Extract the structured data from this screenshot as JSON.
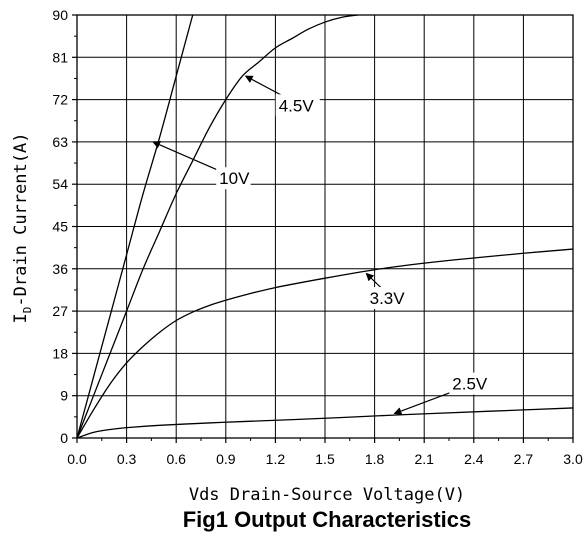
{
  "chart_data": {
    "type": "line",
    "title": "Fig1 Output Characteristics",
    "xlabel": "Vds Drain-Source Voltage(V)",
    "ylabel_main": "I",
    "ylabel_sub": "D",
    "ylabel_rest": "-Drain Current(A)",
    "xlim": [
      0,
      3.0
    ],
    "ylim": [
      0,
      90
    ],
    "grid": true,
    "x_ticks": [
      "0.0",
      "0.3",
      "0.6",
      "0.9",
      "1.2",
      "1.5",
      "1.8",
      "2.1",
      "2.4",
      "2.7",
      "3.0"
    ],
    "y_ticks": [
      "0",
      "9",
      "18",
      "27",
      "36",
      "45",
      "54",
      "63",
      "72",
      "81",
      "90"
    ],
    "series": [
      {
        "name": "10V",
        "x": [
          0,
          0.1,
          0.2,
          0.3,
          0.4,
          0.5,
          0.6,
          0.7
        ],
        "y": [
          0,
          13,
          26,
          39,
          52,
          64,
          77,
          90
        ]
      },
      {
        "name": "4.5V",
        "x": [
          0,
          0.1,
          0.2,
          0.3,
          0.4,
          0.5,
          0.6,
          0.7,
          0.8,
          0.9,
          1.0,
          1.1,
          1.2,
          1.3,
          1.4,
          1.5,
          1.6,
          1.7
        ],
        "y": [
          0,
          9,
          18,
          27,
          36,
          44,
          52,
          59,
          66,
          72,
          77,
          80,
          83,
          85,
          87,
          88.5,
          89.5,
          90
        ]
      },
      {
        "name": "3.3V",
        "x": [
          0,
          0.1,
          0.2,
          0.3,
          0.4,
          0.5,
          0.6,
          0.7,
          0.8,
          0.9,
          1.0,
          1.2,
          1.5,
          1.8,
          2.1,
          2.4,
          2.7,
          3.0
        ],
        "y": [
          0,
          6,
          11.5,
          16,
          19.5,
          22.5,
          25,
          26.8,
          28.2,
          29.3,
          30.3,
          32,
          34,
          35.8,
          37.2,
          38.3,
          39.3,
          40.2
        ]
      },
      {
        "name": "2.5V",
        "x": [
          0,
          0.1,
          0.2,
          0.3,
          0.5,
          0.8,
          1.0,
          1.5,
          2.0,
          2.5,
          3.0
        ],
        "y": [
          0,
          1.2,
          1.8,
          2.2,
          2.7,
          3.2,
          3.5,
          4.2,
          5.0,
          5.7,
          6.4
        ]
      }
    ],
    "labels": [
      {
        "text": "10V",
        "x": 0.86,
        "y": 54,
        "arrow_to": [
          0.46,
          63
        ]
      },
      {
        "text": "4.5V",
        "x": 1.22,
        "y": 69.5,
        "arrow_to": [
          1.02,
          77
        ]
      },
      {
        "text": "3.3V",
        "x": 1.77,
        "y": 28.5,
        "arrow_to": [
          1.75,
          35
        ]
      },
      {
        "text": "2.5V",
        "x": 2.27,
        "y": 10.3,
        "arrow_to": [
          1.92,
          5.2
        ]
      }
    ]
  }
}
